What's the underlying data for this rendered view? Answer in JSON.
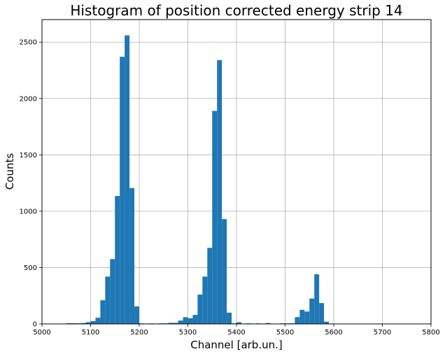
{
  "chart_data": {
    "type": "bar",
    "title": "Histogram of position corrected energy strip 14",
    "xlabel": "Channel [arb.un.]",
    "ylabel": "Counts",
    "xlim": [
      5000,
      5800
    ],
    "ylim": [
      0,
      2700
    ],
    "xticks": [
      5000,
      5100,
      5200,
      5300,
      5400,
      5500,
      5600,
      5700,
      5800
    ],
    "yticks": [
      0,
      500,
      1000,
      1500,
      2000,
      2500
    ],
    "grid": true,
    "bin_width": 10,
    "color": "#1f77b4",
    "bins": [
      {
        "x": 5000,
        "count": 2
      },
      {
        "x": 5010,
        "count": 3
      },
      {
        "x": 5020,
        "count": 2
      },
      {
        "x": 5030,
        "count": 3
      },
      {
        "x": 5040,
        "count": 0
      },
      {
        "x": 5050,
        "count": 6
      },
      {
        "x": 5060,
        "count": 6
      },
      {
        "x": 5070,
        "count": 5
      },
      {
        "x": 5080,
        "count": 8
      },
      {
        "x": 5090,
        "count": 15
      },
      {
        "x": 5100,
        "count": 25
      },
      {
        "x": 5110,
        "count": 55
      },
      {
        "x": 5120,
        "count": 210
      },
      {
        "x": 5130,
        "count": 420
      },
      {
        "x": 5140,
        "count": 575
      },
      {
        "x": 5150,
        "count": 1135
      },
      {
        "x": 5160,
        "count": 2370
      },
      {
        "x": 5170,
        "count": 2560
      },
      {
        "x": 5180,
        "count": 1205
      },
      {
        "x": 5190,
        "count": 155
      },
      {
        "x": 5200,
        "count": 5
      },
      {
        "x": 5210,
        "count": 0
      },
      {
        "x": 5220,
        "count": 4
      },
      {
        "x": 5230,
        "count": 3
      },
      {
        "x": 5240,
        "count": 5
      },
      {
        "x": 5250,
        "count": 5
      },
      {
        "x": 5260,
        "count": 10
      },
      {
        "x": 5270,
        "count": 10
      },
      {
        "x": 5280,
        "count": 30
      },
      {
        "x": 5290,
        "count": 60
      },
      {
        "x": 5300,
        "count": 50
      },
      {
        "x": 5310,
        "count": 80
      },
      {
        "x": 5320,
        "count": 260
      },
      {
        "x": 5330,
        "count": 420
      },
      {
        "x": 5340,
        "count": 675
      },
      {
        "x": 5350,
        "count": 1890
      },
      {
        "x": 5360,
        "count": 2340
      },
      {
        "x": 5370,
        "count": 930
      },
      {
        "x": 5380,
        "count": 100
      },
      {
        "x": 5390,
        "count": 5
      },
      {
        "x": 5400,
        "count": 15
      },
      {
        "x": 5410,
        "count": 3
      },
      {
        "x": 5420,
        "count": 5
      },
      {
        "x": 5430,
        "count": 3
      },
      {
        "x": 5440,
        "count": 5
      },
      {
        "x": 5450,
        "count": 3
      },
      {
        "x": 5460,
        "count": 8
      },
      {
        "x": 5470,
        "count": 3
      },
      {
        "x": 5480,
        "count": 3
      },
      {
        "x": 5490,
        "count": 5
      },
      {
        "x": 5500,
        "count": 5
      },
      {
        "x": 5510,
        "count": 5
      },
      {
        "x": 5520,
        "count": 60
      },
      {
        "x": 5530,
        "count": 125
      },
      {
        "x": 5540,
        "count": 110
      },
      {
        "x": 5550,
        "count": 225
      },
      {
        "x": 5560,
        "count": 440
      },
      {
        "x": 5570,
        "count": 185
      },
      {
        "x": 5580,
        "count": 20
      },
      {
        "x": 5590,
        "count": 2
      },
      {
        "x": 5600,
        "count": 2
      },
      {
        "x": 5610,
        "count": 2
      },
      {
        "x": 5620,
        "count": 2
      },
      {
        "x": 5630,
        "count": 2
      },
      {
        "x": 5640,
        "count": 2
      },
      {
        "x": 5650,
        "count": 2
      },
      {
        "x": 5660,
        "count": 2
      },
      {
        "x": 5670,
        "count": 2
      },
      {
        "x": 5680,
        "count": 2
      },
      {
        "x": 5690,
        "count": 2
      },
      {
        "x": 5700,
        "count": 2
      },
      {
        "x": 5710,
        "count": 2
      },
      {
        "x": 5720,
        "count": 2
      },
      {
        "x": 5730,
        "count": 2
      },
      {
        "x": 5740,
        "count": 2
      },
      {
        "x": 5750,
        "count": 2
      },
      {
        "x": 5760,
        "count": 2
      },
      {
        "x": 5770,
        "count": 2
      },
      {
        "x": 5780,
        "count": 2
      },
      {
        "x": 5790,
        "count": 2
      }
    ]
  }
}
